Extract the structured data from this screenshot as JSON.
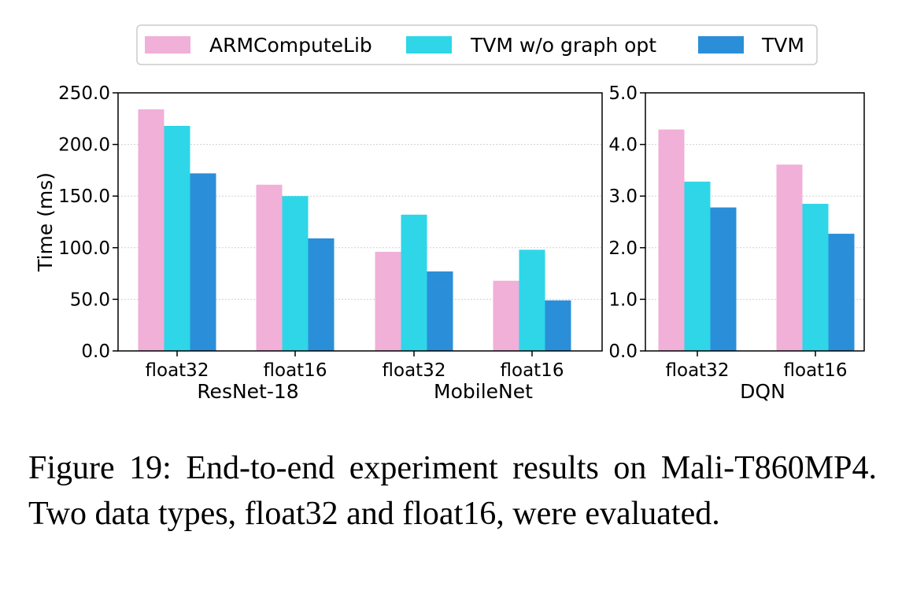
{
  "chart_data": [
    {
      "type": "bar",
      "panel": "left",
      "ylabel": "Time (ms)",
      "ylim": [
        0,
        250
      ],
      "yticks": [
        "0.0",
        "50.0",
        "100.0",
        "150.0",
        "200.0",
        "250.0"
      ],
      "grid": "horizontal dotted",
      "categories": [
        "float32",
        "float16",
        "float32",
        "float16"
      ],
      "groups": [
        "ResNet-18",
        "MobileNet"
      ],
      "series": [
        {
          "name": "ARMComputeLib",
          "color": "#f0b0d8",
          "values": [
            234,
            161,
            96,
            68
          ]
        },
        {
          "name": "TVM w/o graph opt",
          "color": "#2ed6e8",
          "values": [
            218,
            150,
            132,
            98
          ]
        },
        {
          "name": "TVM",
          "color": "#2a8fd8",
          "values": [
            172,
            109,
            77,
            49
          ]
        }
      ]
    },
    {
      "type": "bar",
      "panel": "right",
      "ylim": [
        0,
        5
      ],
      "yticks": [
        "0.0",
        "1.0",
        "2.0",
        "3.0",
        "4.0",
        "5.0"
      ],
      "grid": "horizontal dotted",
      "categories": [
        "float32",
        "float16"
      ],
      "groups": [
        "DQN"
      ],
      "series": [
        {
          "name": "ARMComputeLib",
          "color": "#f0b0d8",
          "values": [
            4.29,
            3.61
          ]
        },
        {
          "name": "TVM w/o graph opt",
          "color": "#2ed6e8",
          "values": [
            3.28,
            2.85
          ]
        },
        {
          "name": "TVM",
          "color": "#2a8fd8",
          "values": [
            2.78,
            2.27
          ]
        }
      ]
    }
  ],
  "legend": {
    "placement": "top-center",
    "items": [
      {
        "label": "ARMComputeLib",
        "color": "#f0b0d8"
      },
      {
        "label": "TVM w/o graph opt",
        "color": "#2ed6e8"
      },
      {
        "label": "TVM",
        "color": "#2a8fd8"
      }
    ]
  },
  "caption": {
    "text": "Figure 19:  End-to-end experiment results on Mali-T860MP4.  Two data types, float32 and float16, were evaluated."
  }
}
